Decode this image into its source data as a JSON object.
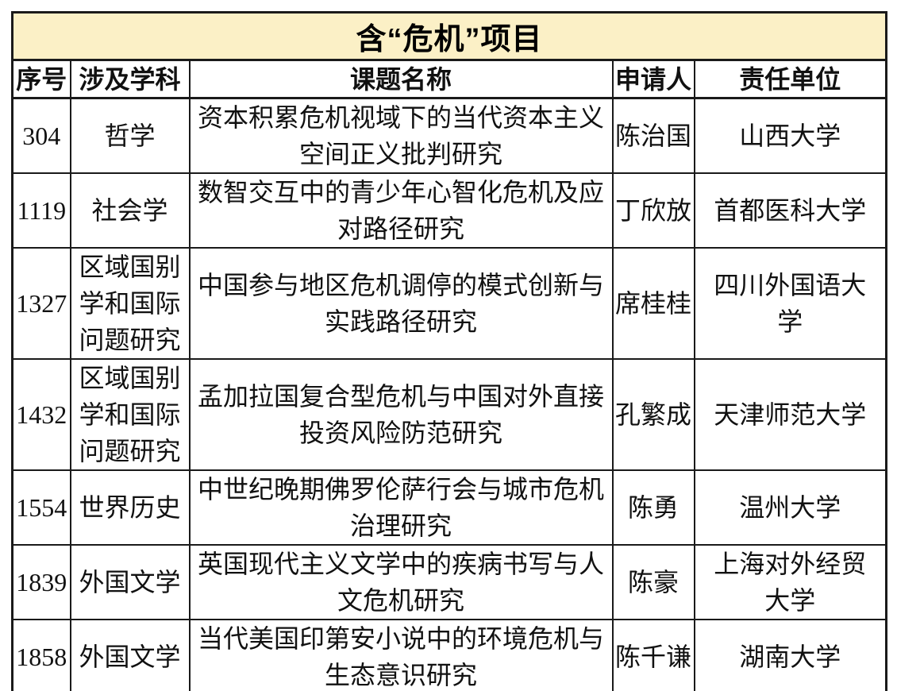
{
  "title": "含“危机”项目",
  "columns": [
    "序号",
    "涉及学科",
    "课题名称",
    "申请人",
    "责任单位"
  ],
  "rows": [
    {
      "no": "304",
      "discipline": "哲学",
      "topic": "资本积累危机视域下的当代资本主义空间正义批判研究",
      "applicant": "陈治国",
      "unit": "山西大学"
    },
    {
      "no": "1119",
      "discipline": "社会学",
      "topic": "数智交互中的青少年心智化危机及应对路径研究",
      "applicant": "丁欣放",
      "unit": "首都医科大学"
    },
    {
      "no": "1327",
      "discipline": "区域国别学和国际问题研究",
      "topic": "中国参与地区危机调停的模式创新与实践路径研究",
      "applicant": "席桂桂",
      "unit": "四川外国语大学"
    },
    {
      "no": "1432",
      "discipline": "区域国别学和国际问题研究",
      "topic": "孟加拉国复合型危机与中国对外直接投资风险防范研究",
      "applicant": "孔繁成",
      "unit": "天津师范大学"
    },
    {
      "no": "1554",
      "discipline": "世界历史",
      "topic": "中世纪晚期佛罗伦萨行会与城市危机治理研究",
      "applicant": "陈勇",
      "unit": "温州大学"
    },
    {
      "no": "1839",
      "discipline": "外国文学",
      "topic": "英国现代主义文学中的疾病书写与人文危机研究",
      "applicant": "陈豪",
      "unit": "上海对外经贸大学"
    },
    {
      "no": "1858",
      "discipline": "外国文学",
      "topic": "当代美国印第安小说中的环境危机与生态意识研究",
      "applicant": "陈千谦",
      "unit": "湖南大学"
    }
  ],
  "colors": {
    "page_bg": "#FFFFFF",
    "title_bg": "#FBF0C6",
    "border": "#1A1A1A",
    "text": "#111111"
  }
}
